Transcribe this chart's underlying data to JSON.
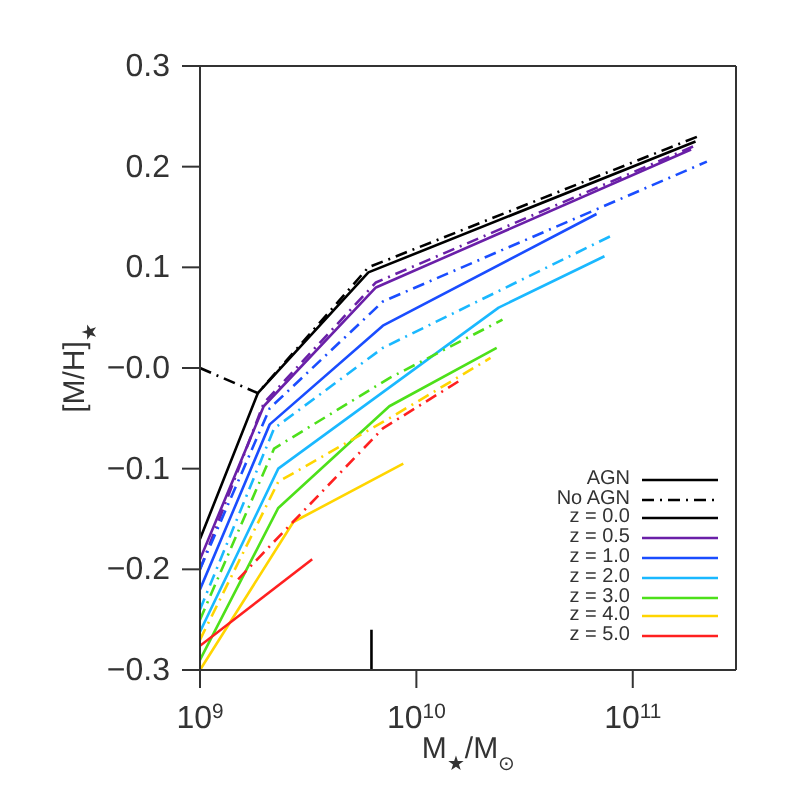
{
  "chart_data": {
    "type": "line",
    "xlabel": "M$_{★}$/M$_{⊙}$",
    "ylabel": "[M/H]$_{★}$",
    "log": "x",
    "legend": "bottom right",
    "xlim": [
      1000000000,
      300000000000
    ],
    "xticks": [
      {
        "value": 1000000000,
        "label": "10$^{9}$"
      },
      {
        "value": 10000000000,
        "label": "10$^{10}$"
      },
      {
        "value": 100000000000,
        "label": "10$^{11}$"
      }
    ],
    "ylim": [
      -0.3,
      0.3
    ],
    "yticks": [
      {
        "value": 0.3,
        "label": "0.3"
      },
      {
        "value": 0.2,
        "label": "0.2"
      },
      {
        "value": 0.1,
        "label": "0.1"
      },
      {
        "value": 0,
        "label": "−0.0"
      },
      {
        "value": -0.1,
        "label": "−0.1"
      },
      {
        "value": -0.2,
        "label": "−0.2"
      },
      {
        "value": -0.3,
        "label": "−0.3"
      }
    ],
    "series": [
      {
        "name": "AGN",
        "color": "#000000",
        "line_style": "solid"
      },
      {
        "name": "No AGN",
        "color": "#000000",
        "line_style": "dashed"
      },
      {
        "color": "#000000",
        "line_style": "solid",
        "x": [
          6200000000,
          6200000000
        ],
        "values": [
          -0.3,
          -0.26
        ]
      },
      {
        "name": "z = 0.0",
        "color": "#000000",
        "line_style": "solid",
        "x": [
          1000000000,
          1850000000,
          6000000000,
          195000000000
        ],
        "values": [
          -0.17,
          -0.025,
          0.095,
          0.225
        ]
      },
      {
        "color": "#000000",
        "line_style": "dashed",
        "x": [
          1000000000,
          1850000000,
          6000000000,
          200000000000
        ],
        "values": [
          0.0,
          -0.025,
          0.1,
          0.23
        ]
      },
      {
        "name": "z = 0.5",
        "color": "#6a1fa8",
        "line_style": "solid",
        "x": [
          1000000000,
          1970000000,
          6500000000,
          186000000000
        ],
        "values": [
          -0.19,
          -0.038,
          0.08,
          0.217
        ]
      },
      {
        "color": "#6a1fa8",
        "line_style": "dashed",
        "x": [
          1000000000,
          1970000000,
          6500000000,
          190000000000
        ],
        "values": [
          -0.2,
          -0.035,
          0.085,
          0.22
        ]
      },
      {
        "name": "z = 1.0",
        "color": "#1a4dff",
        "line_style": "solid",
        "x": [
          1000000000,
          2100000000,
          7000000000,
          68000000000
        ],
        "values": [
          -0.22,
          -0.056,
          0.042,
          0.153
        ]
      },
      {
        "color": "#1a4dff",
        "line_style": "dashed",
        "x": [
          1000000000,
          2100000000,
          7000000000,
          220000000000
        ],
        "values": [
          -0.2,
          -0.04,
          0.066,
          0.205
        ]
      },
      {
        "name": "z = 2.0",
        "color": "#1ab8ff",
        "line_style": "solid",
        "x": [
          1000000000,
          2300000000,
          24000000000,
          74000000000
        ],
        "values": [
          -0.262,
          -0.1,
          0.06,
          0.111
        ]
      },
      {
        "color": "#1ab8ff",
        "line_style": "dashed",
        "x": [
          1000000000,
          2200000000,
          7000000000,
          79000000000
        ],
        "values": [
          -0.24,
          -0.06,
          0.02,
          0.131
        ]
      },
      {
        "name": "z = 3.0",
        "color": "#4de01a",
        "line_style": "solid",
        "x": [
          1000000000,
          2300000000,
          7500000000,
          23500000000
        ],
        "values": [
          -0.29,
          -0.139,
          -0.038,
          0.02
        ]
      },
      {
        "color": "#4de01a",
        "line_style": "dashed",
        "x": [
          1000000000,
          2200000000,
          7500000000,
          25000000000
        ],
        "values": [
          -0.25,
          -0.08,
          -0.01,
          0.048
        ]
      },
      {
        "name": "z = 4.0",
        "color": "#ffd500",
        "line_style": "solid",
        "x": [
          1000000000,
          2700000000,
          8700000000
        ],
        "values": [
          -0.3,
          -0.153,
          -0.095
        ]
      },
      {
        "color": "#ffd500",
        "line_style": "dashed",
        "x": [
          1000000000,
          2300000000,
          7500000000,
          22000000000
        ],
        "values": [
          -0.27,
          -0.113,
          -0.05,
          0.01
        ]
      },
      {
        "name": "z = 5.0",
        "color": "#ff2020",
        "line_style": "solid",
        "x": [
          1000000000,
          3300000000
        ],
        "values": [
          -0.276,
          -0.19
        ]
      },
      {
        "color": "#ff2020",
        "line_style": "dashed",
        "x": [
          1500000000,
          2500000000,
          7000000000,
          16000000000
        ],
        "values": [
          -0.21,
          -0.16,
          -0.06,
          -0.012
        ]
      }
    ]
  }
}
